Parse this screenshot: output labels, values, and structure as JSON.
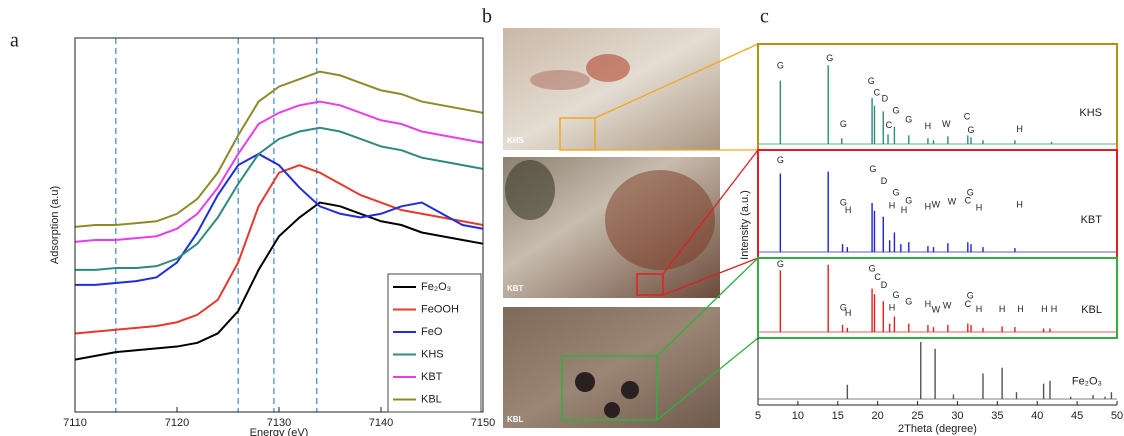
{
  "chart_data": [
    {
      "type": "line",
      "panel_label": "a",
      "xlabel": "Energy (eV)",
      "ylabel": "Adsorption (a.u)",
      "xlim": [
        7110,
        7150
      ],
      "xticks": [
        7110,
        7120,
        7130,
        7140,
        7150
      ],
      "ylim": [
        0,
        100
      ],
      "vlines": [
        7114,
        7126,
        7129.5,
        7133.7
      ],
      "vline_color": "#4a90d9",
      "legend": "lower right",
      "x": [
        7110,
        7112,
        7114,
        7116,
        7118,
        7120,
        7122,
        7124,
        7126,
        7128,
        7130,
        7132,
        7134,
        7136,
        7138,
        7140,
        7142,
        7144,
        7146,
        7148,
        7150
      ],
      "series": [
        {
          "name": "Fe₂O₃",
          "color": "#000000",
          "values": [
            14,
            15,
            16,
            16.5,
            17,
            17.5,
            18.5,
            21,
            27,
            38,
            47,
            52,
            56,
            55,
            53,
            51,
            50,
            48,
            47,
            46,
            45
          ]
        },
        {
          "name": "FeOOH",
          "color": "#e8382c",
          "values": [
            21,
            21.5,
            22,
            22.5,
            23,
            24,
            26,
            30,
            40,
            55,
            64,
            66,
            64,
            61,
            58,
            56,
            54,
            53,
            52,
            51,
            50
          ]
        },
        {
          "name": "FeO",
          "color": "#1f2fd6",
          "values": [
            34,
            34,
            34.5,
            35,
            36,
            40,
            48,
            58,
            66,
            69,
            66,
            60,
            55,
            53,
            52,
            53,
            55,
            56,
            53,
            50,
            49
          ]
        },
        {
          "name": "KHS",
          "color": "#2e8b7a",
          "values": [
            38,
            38,
            38.5,
            38.5,
            39,
            41,
            45,
            52,
            61,
            69,
            73,
            75,
            76,
            75,
            73,
            71,
            70,
            68,
            67,
            66,
            65
          ]
        },
        {
          "name": "KBT",
          "color": "#e83ee8",
          "values": [
            45.5,
            46,
            46,
            46.5,
            47,
            49,
            53,
            60,
            69,
            77,
            80,
            82,
            83,
            82,
            80,
            78,
            77,
            75,
            74,
            73,
            72
          ]
        },
        {
          "name": "KBL",
          "color": "#8f8a28",
          "values": [
            49.5,
            50,
            50,
            50.5,
            51,
            53,
            57,
            64,
            74,
            83,
            87,
            89,
            91,
            90,
            88,
            86,
            85,
            83,
            82,
            81,
            80
          ]
        }
      ]
    },
    {
      "type": "photo",
      "panel_label": "b",
      "labels": [
        "KHS",
        "KBT",
        "KBL"
      ],
      "box_colors": [
        "#f0a820",
        "#e02020",
        "#30b040"
      ]
    },
    {
      "type": "stick",
      "panel_label": "c",
      "xlabel": "2Theta (degree)",
      "ylabel": "Intensity (a.u.)",
      "xlim": [
        5,
        50
      ],
      "xticks": [
        5,
        10,
        15,
        20,
        25,
        30,
        35,
        40,
        45,
        50
      ],
      "ylim": [
        0,
        100
      ],
      "series": [
        {
          "name": "KHS",
          "color": "#2e8b7a",
          "frame_color": "#b8900c",
          "x": [
            7.8,
            13.8,
            15.5,
            19.3,
            19.6,
            20.7,
            21.3,
            22.1,
            23.9,
            26.3,
            27,
            28.8,
            31.3,
            31.7,
            33.2,
            37.2,
            41.8
          ],
          "values": [
            66,
            82,
            6,
            48,
            40,
            34,
            10,
            18,
            9,
            6,
            4,
            8,
            9,
            7,
            4,
            4,
            2
          ],
          "annotations": [
            {
              "text": "G",
              "x": 7.8,
              "y": 81
            },
            {
              "text": "G",
              "x": 14,
              "y": 89
            },
            {
              "text": "G",
              "x": 15.7,
              "y": 20
            },
            {
              "text": "G",
              "x": 19.2,
              "y": 65
            },
            {
              "text": "C",
              "x": 19.9,
              "y": 53
            },
            {
              "text": "D",
              "x": 20.9,
              "y": 47
            },
            {
              "text": "C",
              "x": 21.4,
              "y": 19
            },
            {
              "text": "G",
              "x": 22.3,
              "y": 34
            },
            {
              "text": "G",
              "x": 23.9,
              "y": 25
            },
            {
              "text": "H",
              "x": 26.3,
              "y": 18
            },
            {
              "text": "W",
              "x": 28.6,
              "y": 20
            },
            {
              "text": "C",
              "x": 31.2,
              "y": 28
            },
            {
              "text": "G",
              "x": 31.7,
              "y": 14
            },
            {
              "text": "H",
              "x": 37.8,
              "y": 15
            }
          ]
        },
        {
          "name": "KBT",
          "color": "#2020d0",
          "frame_color": "#e02020",
          "x": [
            7.8,
            13.8,
            15.6,
            16.2,
            19.3,
            19.6,
            20.7,
            21.5,
            22.1,
            22.9,
            23.9,
            26.3,
            27,
            28.8,
            31.3,
            31.7,
            33.2,
            37.2
          ],
          "values": [
            80,
            82,
            8,
            5,
            50,
            42,
            36,
            12,
            20,
            8,
            10,
            6,
            5,
            9,
            10,
            8,
            5,
            4
          ],
          "annotations": [
            {
              "text": "G",
              "x": 7.8,
              "y": 93
            },
            {
              "text": "G",
              "x": 19.4,
              "y": 84
            },
            {
              "text": "D",
              "x": 20.8,
              "y": 72
            },
            {
              "text": "G",
              "x": 15.7,
              "y": 50
            },
            {
              "text": "H",
              "x": 16.3,
              "y": 42
            },
            {
              "text": "G",
              "x": 22.3,
              "y": 60
            },
            {
              "text": "H",
              "x": 21.8,
              "y": 47
            },
            {
              "text": "H",
              "x": 23.3,
              "y": 42
            },
            {
              "text": "G",
              "x": 23.9,
              "y": 52
            },
            {
              "text": "H",
              "x": 26.3,
              "y": 46
            },
            {
              "text": "W",
              "x": 27.3,
              "y": 48
            },
            {
              "text": "W",
              "x": 29.3,
              "y": 51
            },
            {
              "text": "G",
              "x": 31.6,
              "y": 60
            },
            {
              "text": "C",
              "x": 31.3,
              "y": 52
            },
            {
              "text": "H",
              "x": 32.7,
              "y": 45
            },
            {
              "text": "H",
              "x": 37.8,
              "y": 48
            }
          ]
        },
        {
          "name": "KBL",
          "color": "#e02020",
          "frame_color": "#30b040",
          "x": [
            7.8,
            13.8,
            15.6,
            16.2,
            19.3,
            19.6,
            20.7,
            21.5,
            22.1,
            23.9,
            26.3,
            27,
            28.8,
            31.3,
            31.7,
            33.2,
            35.6,
            37.2,
            40.8,
            41.6
          ],
          "values": [
            88,
            96,
            10,
            6,
            62,
            54,
            44,
            12,
            22,
            12,
            10,
            7,
            10,
            12,
            10,
            6,
            8,
            7,
            5,
            5
          ],
          "annotations": [
            {
              "text": "G",
              "x": 7.8,
              "y": 96
            },
            {
              "text": "G",
              "x": 19.3,
              "y": 90
            },
            {
              "text": "C",
              "x": 20,
              "y": 78
            },
            {
              "text": "D",
              "x": 20.8,
              "y": 66
            },
            {
              "text": "G",
              "x": 15.7,
              "y": 34
            },
            {
              "text": "H",
              "x": 16.3,
              "y": 26
            },
            {
              "text": "G",
              "x": 22.3,
              "y": 52
            },
            {
              "text": "H",
              "x": 21.8,
              "y": 34
            },
            {
              "text": "G",
              "x": 23.9,
              "y": 43
            },
            {
              "text": "H",
              "x": 26.3,
              "y": 39
            },
            {
              "text": "W",
              "x": 27.3,
              "y": 31
            },
            {
              "text": "W",
              "x": 28.7,
              "y": 37
            },
            {
              "text": "G",
              "x": 31.6,
              "y": 51
            },
            {
              "text": "C",
              "x": 31.3,
              "y": 39
            },
            {
              "text": "H",
              "x": 32.7,
              "y": 32
            },
            {
              "text": "H",
              "x": 35.6,
              "y": 32
            },
            {
              "text": "H",
              "x": 37.9,
              "y": 32
            },
            {
              "text": "H",
              "x": 40.9,
              "y": 32
            },
            {
              "text": "H",
              "x": 42.1,
              "y": 32
            }
          ]
        },
        {
          "name": "Fe₂O₃",
          "color": "#555555",
          "x": [
            16.2,
            25.4,
            27.2,
            29.5,
            33.2,
            35.6,
            37.4,
            40.8,
            41.6,
            44.2,
            47,
            48.5,
            49.3
          ],
          "values": [
            25,
            100,
            88,
            8,
            45,
            55,
            12,
            27,
            32,
            4,
            7,
            4,
            12
          ],
          "annotations": []
        }
      ]
    }
  ]
}
